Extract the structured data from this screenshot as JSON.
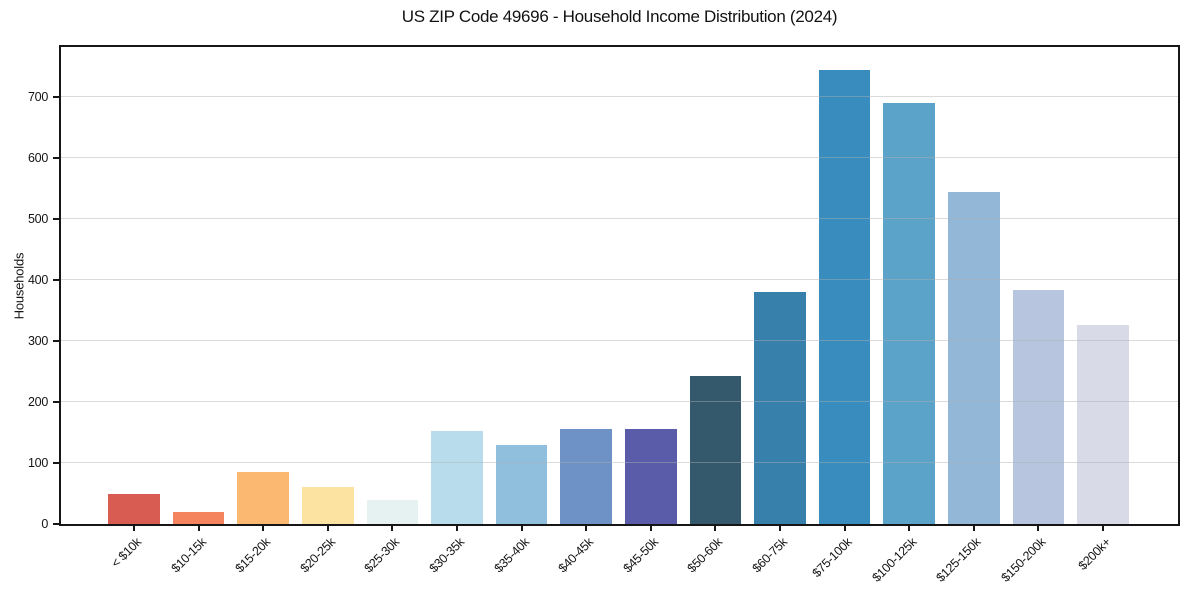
{
  "chart_data": {
    "type": "bar",
    "title": "US ZIP Code 49696 - Household Income Distribution (2024)",
    "xlabel": "",
    "ylabel": "Households",
    "categories": [
      "< $10k",
      "$10-15k",
      "$15-20k",
      "$20-25k",
      "$25-30k",
      "$30-35k",
      "$35-40k",
      "$40-45k",
      "$45-50k",
      "$50-60k",
      "$60-75k",
      "$75-100k",
      "$100-125k",
      "$125-150k",
      "$150-200k",
      "$200k+"
    ],
    "values": [
      50,
      20,
      85,
      60,
      40,
      153,
      129,
      155,
      155,
      242,
      380,
      745,
      690,
      545,
      383,
      326
    ],
    "bar_colors": [
      "#d85c52",
      "#f4845e",
      "#fbb871",
      "#fde3a1",
      "#e6f2f2",
      "#b9dcec",
      "#90bedd",
      "#6e92c5",
      "#5a5ca9",
      "#34596c",
      "#3780ab",
      "#388dbe",
      "#5ba3c9",
      "#93b7d6",
      "#b7c6de",
      "#d8dae8"
    ],
    "yticks": [
      0,
      100,
      200,
      300,
      400,
      500,
      600,
      700
    ],
    "ylim": [
      0,
      782
    ],
    "xlim": [
      -1.13,
      16.16
    ],
    "bar_width": 0.8,
    "grid": "horizontal",
    "legend": "none",
    "background_color": "#ffffff",
    "spine_color": "#161616",
    "gridline_color": "#b0b0b0"
  }
}
